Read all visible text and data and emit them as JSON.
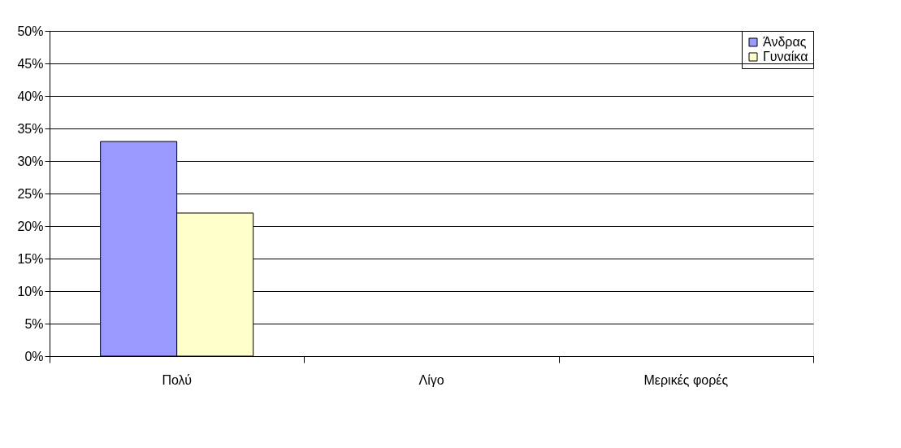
{
  "chart_data": {
    "type": "bar",
    "categories": [
      "Πολύ",
      "Λίγο",
      "Μερικές φορές"
    ],
    "series": [
      {
        "name": "Άνδρας",
        "color": "#9999ff",
        "values": [
          33,
          null,
          null
        ]
      },
      {
        "name": "Γυναίκα",
        "color": "#ffffcc",
        "values": [
          22,
          null,
          null
        ]
      }
    ],
    "ylim": [
      0,
      50
    ],
    "yticks": [
      {
        "value": 0,
        "label": "0%"
      },
      {
        "value": 5,
        "label": "5%"
      },
      {
        "value": 10,
        "label": "10%"
      },
      {
        "value": 15,
        "label": "15%"
      },
      {
        "value": 20,
        "label": "20%"
      },
      {
        "value": 25,
        "label": "25%"
      },
      {
        "value": 30,
        "label": "30%"
      },
      {
        "value": 35,
        "label": "35%"
      },
      {
        "value": 40,
        "label": "40%"
      },
      {
        "value": 45,
        "label": "45%"
      },
      {
        "value": 50,
        "label": "50%"
      }
    ],
    "grid": "y",
    "legend": "top right"
  }
}
